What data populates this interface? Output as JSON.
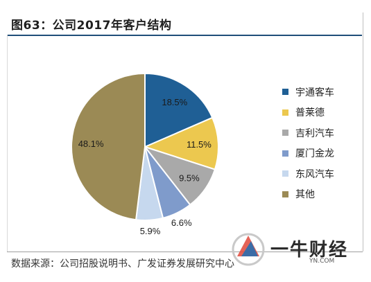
{
  "header": {
    "title": "图63：公司2017年客户结构"
  },
  "footer": {
    "source": "数据来源：公司招股说明书、广发证券发展研究中心"
  },
  "watermark": {
    "text": "一牛财经",
    "url": "YN.COM"
  },
  "chart_data": {
    "type": "pie",
    "title": "图63：公司2017年客户结构",
    "start_angle_deg": 0,
    "direction": "clockwise",
    "legend_position": "right",
    "slices": [
      {
        "label": "宇通客车",
        "value": 18.5,
        "value_label": "18.5%",
        "color": "#1f5f95"
      },
      {
        "label": "普莱德",
        "value": 11.5,
        "value_label": "11.5%",
        "color": "#ecc84f"
      },
      {
        "label": "吉利汽车",
        "value": 9.5,
        "value_label": "9.5%",
        "color": "#a9a9a9"
      },
      {
        "label": "厦门金龙",
        "value": 6.6,
        "value_label": "6.6%",
        "color": "#7f9bcb"
      },
      {
        "label": "东风汽车",
        "value": 5.9,
        "value_label": "5.9%",
        "color": "#c6d8ee"
      },
      {
        "label": "其他",
        "value": 48.1,
        "value_label": "48.1%",
        "color": "#9b8a55"
      }
    ]
  }
}
